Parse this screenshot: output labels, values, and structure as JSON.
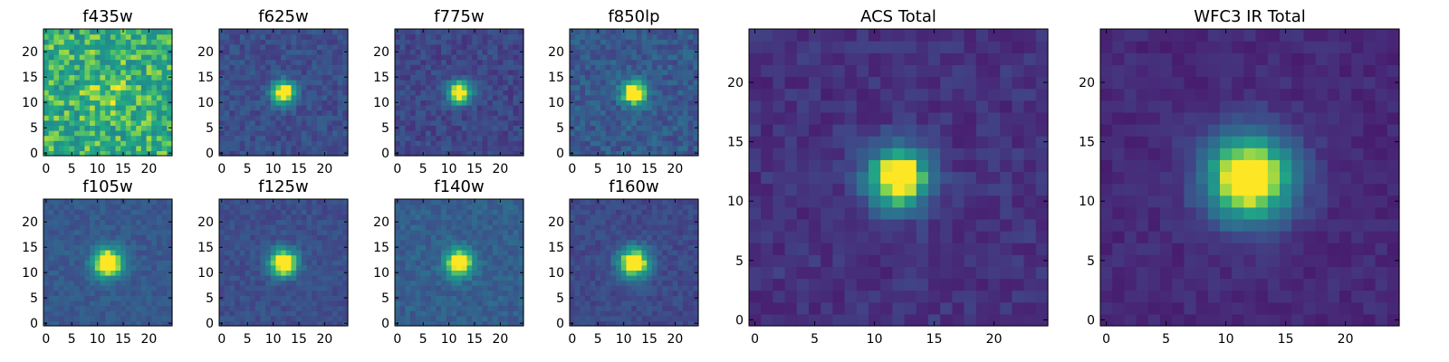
{
  "figure": {
    "panels": [
      {
        "title": "f435w",
        "peak": 0.12,
        "background": 0.75,
        "noise": 0.18,
        "width": 3.0
      },
      {
        "title": "f625w",
        "peak": 0.95,
        "background": 0.3,
        "noise": 0.09,
        "width": 1.6
      },
      {
        "title": "f775w",
        "peak": 0.95,
        "background": 0.27,
        "noise": 0.09,
        "width": 1.6
      },
      {
        "title": "f850lp",
        "peak": 0.85,
        "background": 0.35,
        "noise": 0.11,
        "width": 1.7
      },
      {
        "title": "f105w",
        "peak": 0.95,
        "background": 0.35,
        "noise": 0.07,
        "width": 2.0
      },
      {
        "title": "f125w",
        "peak": 0.95,
        "background": 0.3,
        "noise": 0.07,
        "width": 1.9
      },
      {
        "title": "f140w",
        "peak": 0.85,
        "background": 0.38,
        "noise": 0.08,
        "width": 1.9
      },
      {
        "title": "f160w",
        "peak": 0.95,
        "background": 0.28,
        "noise": 0.07,
        "width": 2.1
      },
      {
        "title": "ACS Total",
        "peak": 1.05,
        "background": 0.18,
        "noise": 0.07,
        "width": 1.8
      },
      {
        "title": "WFC3 IR Total",
        "peak": 1.05,
        "background": 0.15,
        "noise": 0.05,
        "width": 2.6
      }
    ]
  },
  "chart_data": {
    "type": "heatmap",
    "colormap": "viridis",
    "grid_size": [
      25,
      25
    ],
    "source_center": [
      12,
      12
    ],
    "xlim": [
      -0.5,
      24.5
    ],
    "ylim": [
      -0.5,
      24.5
    ],
    "small_xticks": [
      0,
      5,
      10,
      15,
      20
    ],
    "small_yticks": [
      0,
      5,
      10,
      15,
      20
    ],
    "large_xticks": [
      0,
      5,
      10,
      15,
      20
    ],
    "large_yticks": [
      0,
      5,
      10,
      15,
      20
    ]
  }
}
